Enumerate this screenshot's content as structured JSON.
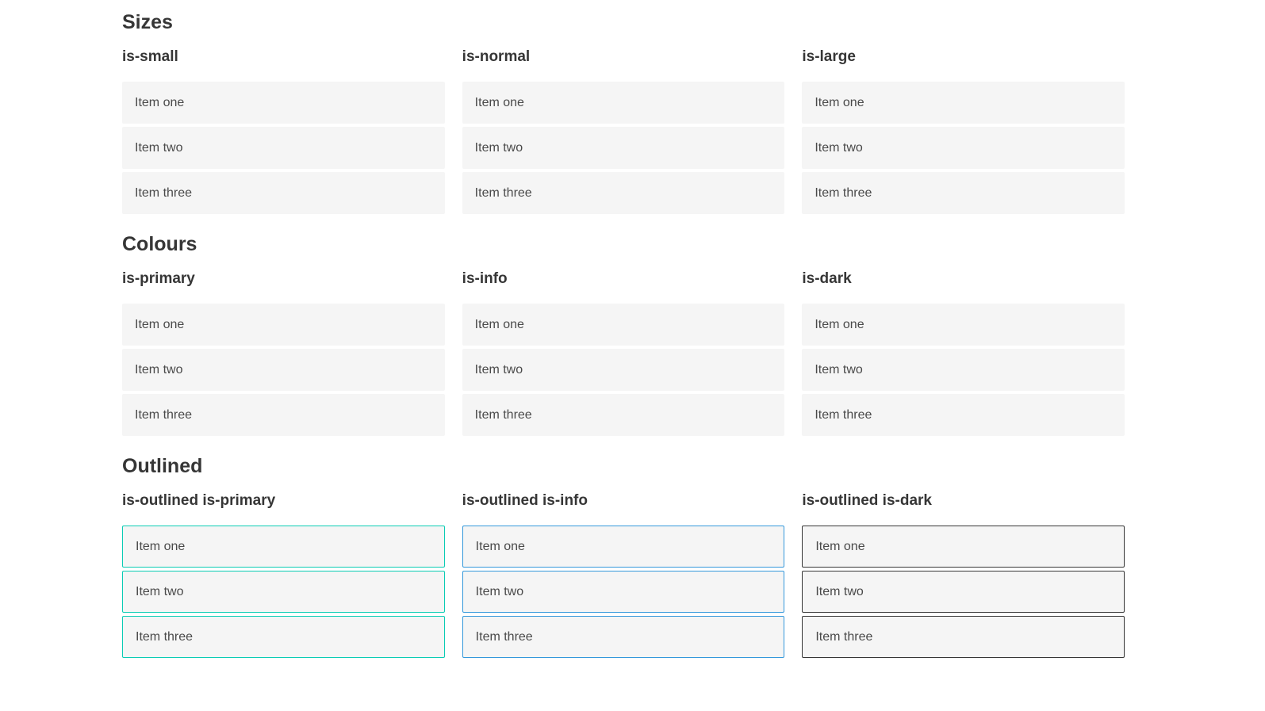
{
  "colors": {
    "primary": "#0accb4",
    "info": "#3498db",
    "dark": "#363636",
    "light_bg": "#f5f5f5",
    "text": "#4a4a4a",
    "heading": "#363636",
    "white": "#ffffff"
  },
  "sections": [
    {
      "title": "Sizes",
      "columns": [
        {
          "heading": "is-small",
          "items": [
            "Item one",
            "Item two",
            "Item three"
          ]
        },
        {
          "heading": "is-normal",
          "items": [
            "Item one",
            "Item two",
            "Item three"
          ]
        },
        {
          "heading": "is-large",
          "items": [
            "Item one",
            "Item two",
            "Item three"
          ]
        }
      ]
    },
    {
      "title": "Colours",
      "columns": [
        {
          "heading": "is-primary",
          "items": [
            "Item one",
            "Item two",
            "Item three"
          ]
        },
        {
          "heading": "is-info",
          "items": [
            "Item one",
            "Item two",
            "Item three"
          ]
        },
        {
          "heading": "is-dark",
          "items": [
            "Item one",
            "Item two",
            "Item three"
          ]
        }
      ]
    },
    {
      "title": "Outlined",
      "columns": [
        {
          "heading": "is-outlined is-primary",
          "items": [
            "Item one",
            "Item two",
            "Item three"
          ]
        },
        {
          "heading": "is-outlined is-info",
          "items": [
            "Item one",
            "Item two",
            "Item three"
          ]
        },
        {
          "heading": "is-outlined is-dark",
          "items": [
            "Item one",
            "Item two",
            "Item three"
          ]
        }
      ]
    }
  ]
}
